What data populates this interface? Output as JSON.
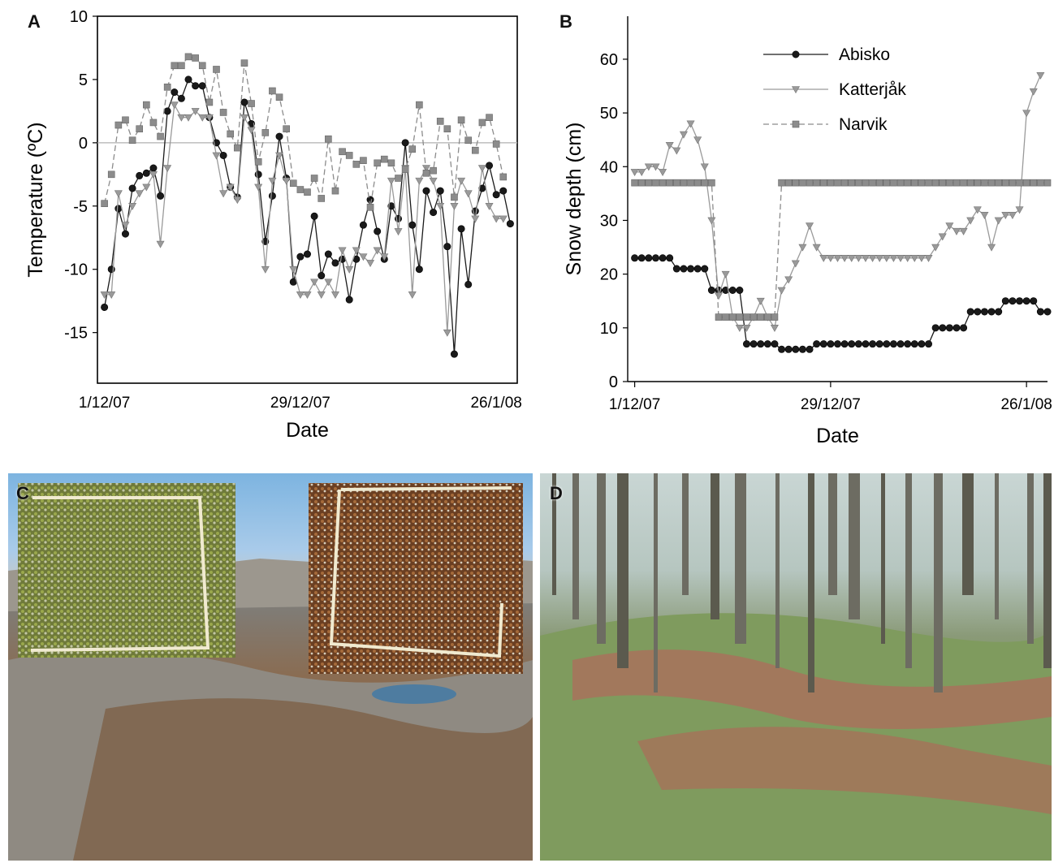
{
  "panels": {
    "a": "A",
    "b": "B",
    "c": "C",
    "d": "D"
  },
  "colors": {
    "abisko": "#1a1a1a",
    "katterjak": "#9a9a9a",
    "narvik": "#8c8c8c",
    "zero_line": "#b0b0b0"
  },
  "chart_data": [
    {
      "id": "A",
      "type": "line",
      "xlabel": "Date",
      "ylabel": "Temperature (ºC)",
      "x_ticks": [
        "1/12/07",
        "29/12/07",
        "26/1/08"
      ],
      "x_range_days": [
        0,
        60
      ],
      "ylim": [
        -19,
        10
      ],
      "y_ticks": [
        10,
        5,
        0,
        -5,
        -10,
        -15
      ],
      "series": [
        {
          "id": "abisko",
          "marker": "circle",
          "values": [
            -13,
            -10,
            -5.2,
            -7.2,
            -3.6,
            -2.6,
            -2.4,
            -2,
            -4.2,
            2.5,
            4,
            3.5,
            5,
            4.5,
            4.5,
            2,
            0,
            -1,
            -3.5,
            -4.3,
            3.2,
            1.5,
            -2.5,
            -7.8,
            -4.2,
            0.5,
            -2.8,
            -11,
            -9,
            -8.8,
            -5.8,
            -10.5,
            -8.8,
            -9.5,
            -9.2,
            -12.4,
            -9.2,
            -6.5,
            -4.5,
            -7,
            -9.2,
            -5,
            -6,
            0,
            -6.5,
            -10,
            -3.8,
            -5.5,
            -3.8,
            -8.2,
            -16.7,
            -6.8,
            -11.2,
            -5.4,
            -3.6,
            -1.8,
            -4.1,
            -3.8,
            -6.4
          ]
        },
        {
          "id": "katterjak",
          "marker": "triangle",
          "values": [
            -12,
            -12,
            -4,
            -6.5,
            -5,
            -4,
            -3.5,
            -2.5,
            -8,
            -2,
            3,
            2,
            2,
            2.5,
            2,
            2,
            -1,
            -4,
            -3.5,
            -4.5,
            2,
            1,
            -3.5,
            -10,
            -3,
            -1,
            -3,
            -10,
            -12,
            -12,
            -11,
            -12,
            -11,
            -12,
            -8.5,
            -10,
            -8.5,
            -9,
            -9.5,
            -8.5,
            -9,
            -3,
            -7,
            -2,
            -12,
            -3,
            -2,
            -3,
            -5,
            -15,
            -5,
            -3,
            -4,
            -6,
            -2,
            -5,
            -6,
            -6
          ]
        },
        {
          "id": "narvik",
          "marker": "square",
          "values": [
            -4.8,
            -2.5,
            1.4,
            1.8,
            0.2,
            1.1,
            3.0,
            1.6,
            0.5,
            4.4,
            6.1,
            6.1,
            6.8,
            6.7,
            6.1,
            3.2,
            5.8,
            2.4,
            0.7,
            -0.4,
            6.3,
            3.1,
            -1.5,
            0.8,
            4.1,
            3.6,
            1.1,
            -3.2,
            -3.7,
            -3.9,
            -2.8,
            -4.4,
            0.3,
            -3.8,
            -0.7,
            -1.0,
            -1.7,
            -1.4,
            -5.1,
            -1.6,
            -1.3,
            -1.6,
            -2.8,
            -2.1,
            -0.5,
            3.0,
            -2.4,
            -2.2,
            1.7,
            1.1,
            -4.3,
            1.8,
            0.2,
            -0.6,
            1.6,
            2.0,
            -0.1,
            -2.7
          ]
        }
      ]
    },
    {
      "id": "B",
      "type": "line",
      "xlabel": "Date",
      "ylabel": "Snow depth (cm)",
      "x_ticks": [
        "1/12/07",
        "29/12/07",
        "26/1/08"
      ],
      "x_range_days": [
        0,
        60
      ],
      "ylim": [
        0,
        68
      ],
      "y_ticks": [
        0,
        10,
        20,
        30,
        40,
        50,
        60
      ],
      "legend": {
        "position": "top-center",
        "entries": [
          "Abisko",
          "Katterjåk",
          "Narvik"
        ]
      },
      "series": [
        {
          "id": "abisko",
          "name": "Abisko",
          "marker": "circle",
          "values": [
            23,
            23,
            23,
            23,
            23,
            23,
            21,
            21,
            21,
            21,
            21,
            17,
            17,
            17,
            17,
            17,
            7,
            7,
            7,
            7,
            7,
            6,
            6,
            6,
            6,
            6,
            7,
            7,
            7,
            7,
            7,
            7,
            7,
            7,
            7,
            7,
            7,
            7,
            7,
            7,
            7,
            7,
            7,
            10,
            10,
            10,
            10,
            10,
            13,
            13,
            13,
            13,
            13,
            15,
            15,
            15,
            15,
            15,
            13,
            13
          ]
        },
        {
          "id": "katterjak",
          "name": "Katterjåk",
          "marker": "triangle",
          "values": [
            39,
            39,
            40,
            40,
            39,
            44,
            43,
            46,
            48,
            45,
            40,
            30,
            16,
            20,
            12,
            10,
            10,
            12,
            15,
            12,
            10,
            17,
            19,
            22,
            25,
            29,
            25,
            23,
            23,
            23,
            23,
            23,
            23,
            23,
            23,
            23,
            23,
            23,
            23,
            23,
            23,
            23,
            23,
            25,
            27,
            29,
            28,
            28,
            30,
            32,
            31,
            25,
            30,
            31,
            31,
            32,
            50,
            54,
            57
          ]
        },
        {
          "id": "narvik",
          "name": "Narvik",
          "marker": "square",
          "values": [
            37,
            37,
            37,
            37,
            37,
            37,
            37,
            37,
            37,
            37,
            37,
            37,
            12,
            12,
            12,
            12,
            12,
            12,
            12,
            12,
            12,
            37,
            37,
            37,
            37,
            37,
            37,
            37,
            37,
            37,
            37,
            37,
            37,
            37,
            37,
            37,
            37,
            37,
            37,
            37,
            37,
            37,
            37,
            37,
            37,
            37,
            37,
            37,
            37,
            37,
            37,
            37,
            37,
            37,
            37,
            37,
            37,
            37,
            37,
            37
          ]
        }
      ]
    }
  ]
}
